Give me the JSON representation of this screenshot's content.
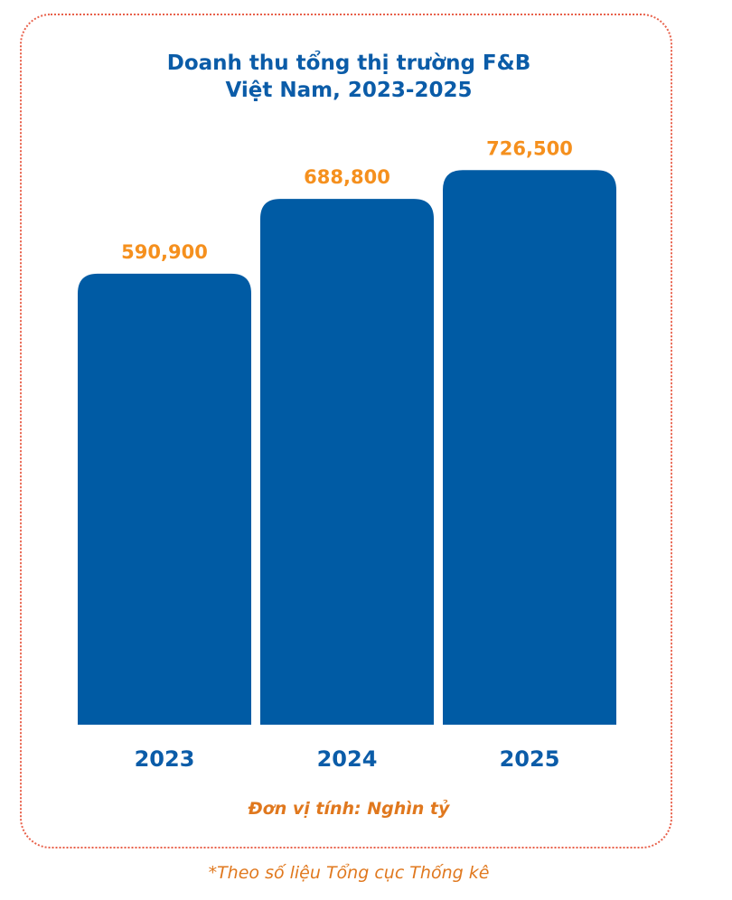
{
  "colors": {
    "bar": "#005ba4",
    "value_label": "#f5901e",
    "category_label": "#0b5ca8",
    "border": "#e8604a"
  },
  "chart_data": {
    "type": "bar",
    "title_line1": "Doanh thu tổng thị trường F&B",
    "title_line2": "Việt Nam, 2023-2025",
    "categories": [
      "2023",
      "2024",
      "2025"
    ],
    "values": [
      590900,
      688800,
      726500
    ],
    "value_labels": [
      "590,900",
      "688,800",
      "726,500"
    ],
    "ylim": [
      0,
      760000
    ]
  },
  "unit_note": "Đơn vị tính: Nghìn tỷ",
  "source_note": "*Theo số liệu Tổng cục Thống kê"
}
